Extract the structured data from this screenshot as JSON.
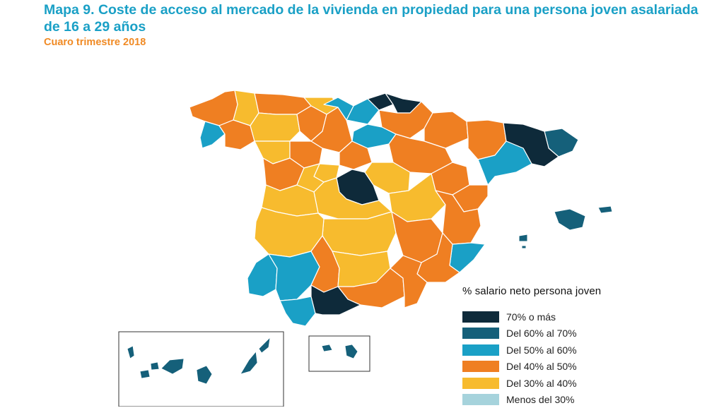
{
  "header": {
    "title": "Mapa 9. Coste de acceso al mercado de la vivienda en propiedad para una persona joven asalariada de 16 a 29 años",
    "subtitle": "Cuaro trimestre 2018"
  },
  "legend": {
    "title": "% salario neto persona joven",
    "items": [
      {
        "label": "70% o más",
        "color": "#0e2a3a"
      },
      {
        "label": "Del 60% al 70%",
        "color": "#15607a"
      },
      {
        "label": "Del 50% al 60%",
        "color": "#1aa0c6"
      },
      {
        "label": "Del 40% al 50%",
        "color": "#ef7f22"
      },
      {
        "label": "Del 30% al 40%",
        "color": "#f7bb2e"
      },
      {
        "label": "Menos del 30%",
        "color": "#a6d3dc"
      }
    ]
  },
  "colors": {
    "accent_title": "#1aa0c6",
    "accent_subtitle": "#f08a24",
    "region_border": "#ffffff",
    "inset_frame": "#333333"
  }
}
